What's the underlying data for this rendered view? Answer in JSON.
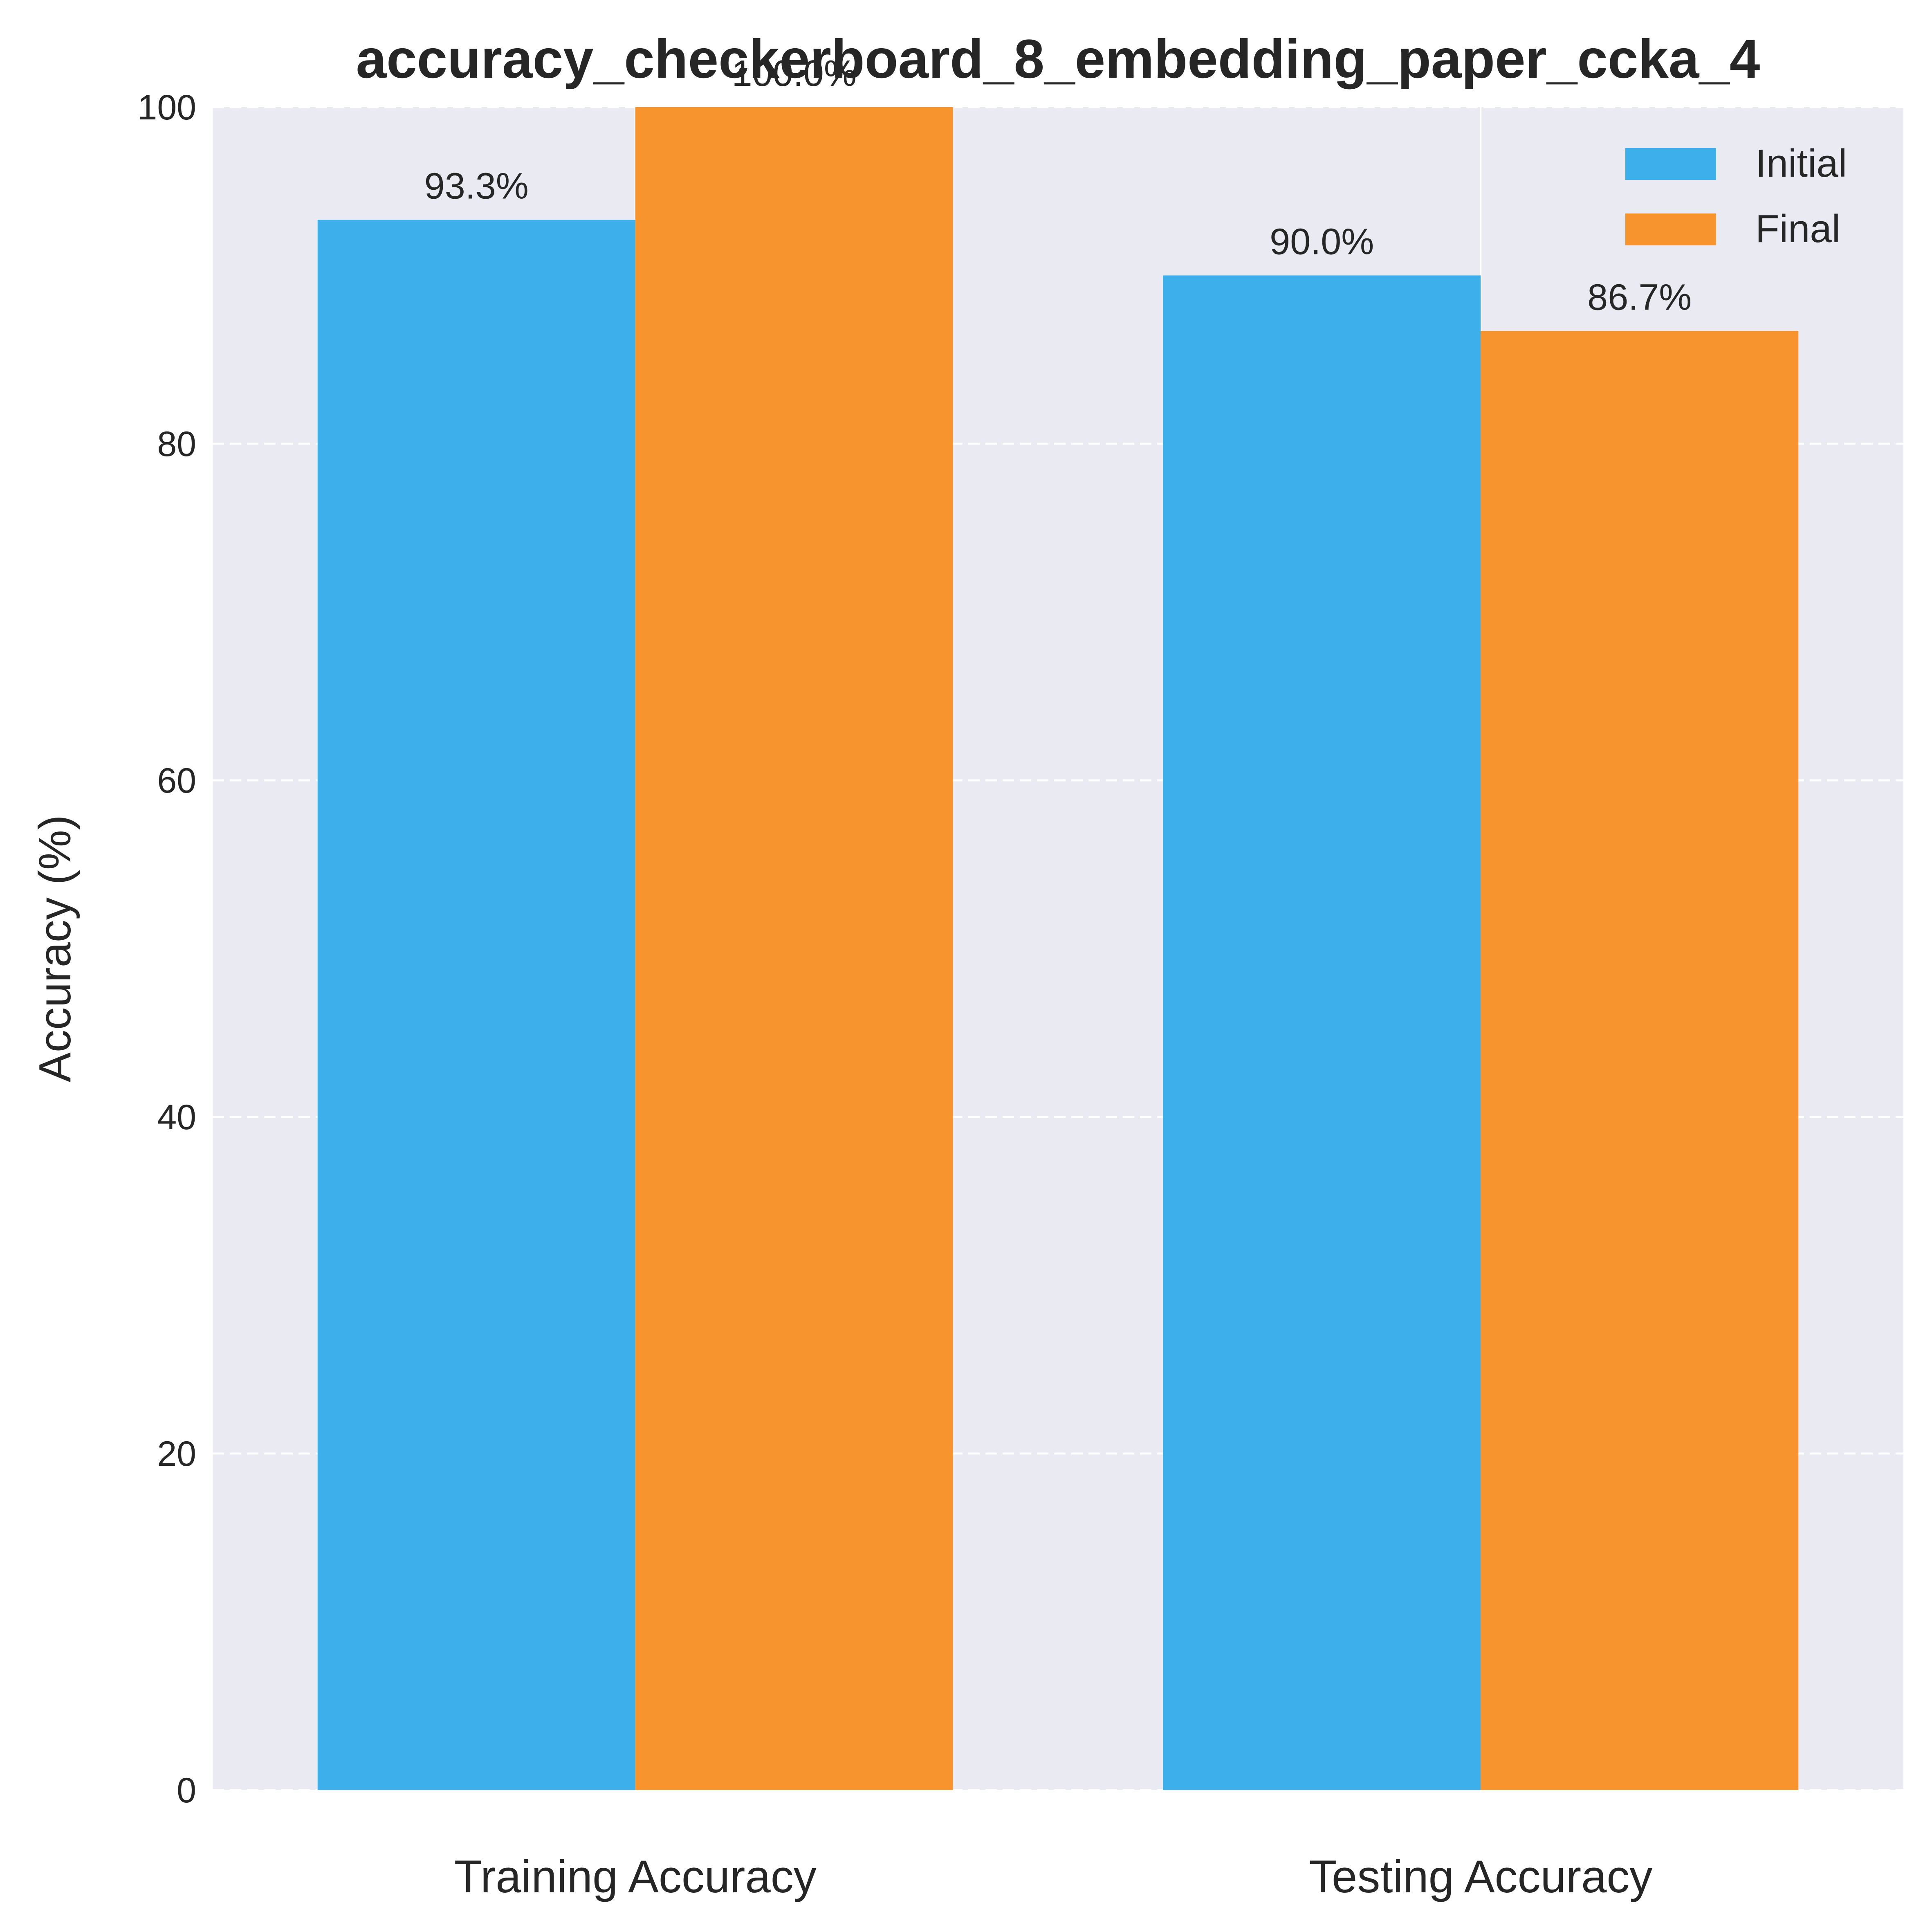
{
  "chart_data": {
    "type": "bar",
    "title": "accuracy_checkerboard_8_embedding_paper_ccka_4",
    "xlabel": "",
    "ylabel": "Accuracy (%)",
    "categories": [
      "Training Accuracy",
      "Testing Accuracy"
    ],
    "series": [
      {
        "name": "Initial",
        "color": "#3DAFEA",
        "values": [
          93.3,
          90.0
        ],
        "labels": [
          "93.3%",
          "90.0%"
        ]
      },
      {
        "name": "Final",
        "color": "#F7942E",
        "values": [
          100.0,
          86.7
        ],
        "labels": [
          "100.0%",
          "86.7%"
        ]
      }
    ],
    "ylim": [
      0,
      100
    ],
    "yticks": [
      "0",
      "20",
      "40",
      "60",
      "80",
      "100"
    ],
    "grid": true,
    "legend_position": "top-right",
    "background_color": "#EAEAF2"
  }
}
